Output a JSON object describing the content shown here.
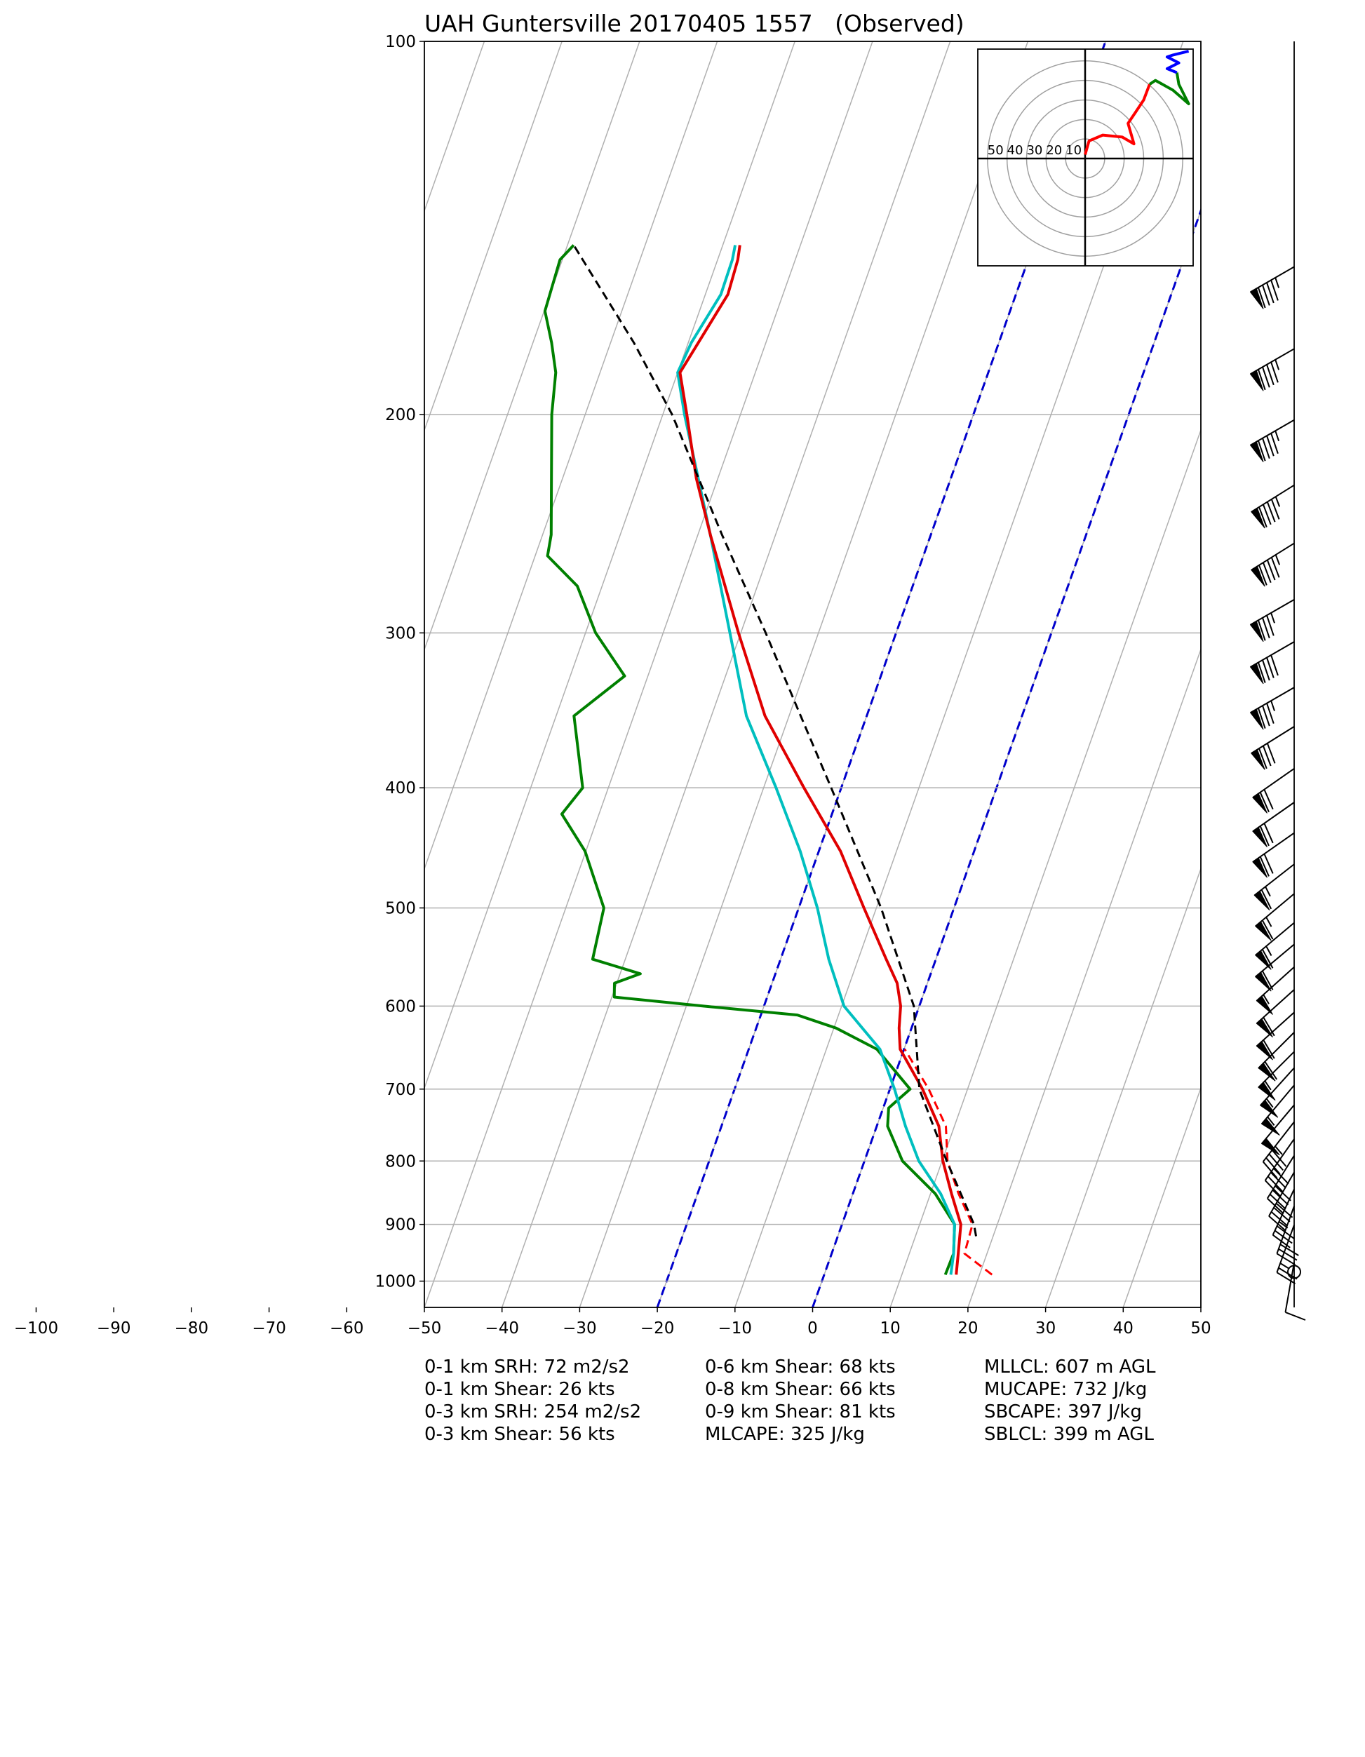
{
  "chart_data": {
    "type": "skewt",
    "title": "UAH Guntersville 20170405 1557   (Observed)",
    "ylim": [
      1050,
      100
    ],
    "ylog": true,
    "yticks": [
      100,
      200,
      300,
      400,
      500,
      600,
      700,
      800,
      900,
      1000
    ],
    "xlim": [
      -50,
      50
    ],
    "xticks": [
      {
        "value": -100,
        "label": "−100"
      },
      {
        "value": -90,
        "label": "−90"
      },
      {
        "value": -80,
        "label": "−80"
      },
      {
        "value": -70,
        "label": "−70"
      },
      {
        "value": -60,
        "label": "−60"
      },
      {
        "value": -50,
        "label": "−50"
      },
      {
        "value": -40,
        "label": "−40"
      },
      {
        "value": -30,
        "label": "−30"
      },
      {
        "value": -20,
        "label": "−20"
      },
      {
        "value": -10,
        "label": "−10"
      },
      0,
      10,
      20,
      30,
      40,
      50
    ],
    "grid": true,
    "highlight_isotherms": [
      -20,
      0
    ],
    "highlight_color": "#0000cc",
    "series": [
      {
        "color": "#008000",
        "dash": false,
        "x": [
          15.6,
          15.7,
          14.5,
          10.6,
          4.9,
          1.4,
          0.7,
          2.6,
          -3.5,
          -9.7,
          -15.3,
          -27.8,
          -39.7,
          -40.3,
          -37.4,
          -44.2,
          -45.1,
          -50.1,
          -54.8,
          -53.3,
          -57.7,
          -53.0,
          -58.7,
          -63.2,
          -68.4,
          -68.9,
          -74.3,
          -75.7,
          -77.6,
          -79.9,
          -80.3,
          -79.2
        ],
        "y": [
          988,
          950,
          900,
          850,
          800,
          750,
          725,
          700,
          650,
          625,
          610,
          600,
          590,
          575,
          565,
          550,
          500,
          450,
          420,
          400,
          350,
          325,
          300,
          275,
          260,
          250,
          200,
          185,
          175,
          165,
          150,
          146
        ]
      },
      {
        "color": "#00bfbf",
        "dash": false,
        "x": [
          16.3,
          15.7,
          14.5,
          11.3,
          7.0,
          3.7,
          0.6,
          -3.1,
          -9.7,
          -13.8,
          -17.6,
          -22.4,
          -28.4,
          -35.5,
          -41.4,
          -48.4,
          -57.2,
          -60.0,
          -59.6,
          -58.0,
          -58.1,
          -58.4
        ],
        "y": [
          988,
          950,
          900,
          850,
          800,
          750,
          700,
          650,
          600,
          550,
          500,
          450,
          400,
          350,
          300,
          250,
          200,
          185,
          175,
          160,
          150,
          146
        ]
      },
      {
        "color": "#ff0000",
        "dash": true,
        "x": [
          21.6,
          17.1,
          16.8,
          13.6,
          10.7,
          8.9,
          5.0,
          0.1
        ],
        "y": [
          988,
          950,
          900,
          850,
          800,
          750,
          700,
          650
        ]
      },
      {
        "color": "#e00000",
        "dash": false,
        "x": [
          17.0,
          16.3,
          15.3,
          12.7,
          10.1,
          8.0,
          4.2,
          -0.5,
          -1.6,
          -2.4,
          -3.9,
          -6.4,
          -11.6,
          -17.2,
          -24.8,
          -33.1,
          -40.3,
          -48.4,
          -52.8,
          -56.9,
          -59.7,
          -58.7,
          -57.1,
          -57.4,
          -57.8
        ],
        "y": [
          988,
          950,
          900,
          850,
          800,
          750,
          700,
          650,
          625,
          600,
          575,
          550,
          500,
          450,
          400,
          350,
          300,
          250,
          225,
          200,
          185,
          175,
          160,
          150,
          146
        ]
      },
      {
        "color": "#000000",
        "dash": true,
        "x": [
          17.8,
          17.0,
          13.9,
          10.6,
          3.8,
          -0.7,
          -9.4,
          -21.3,
          -28.5,
          -36.8,
          -46.9,
          -58.8,
          -67.0,
          -79.2
        ],
        "y": [
          920,
          900,
          850,
          800,
          700,
          600,
          500,
          400,
          350,
          300,
          250,
          200,
          175,
          146
        ]
      }
    ],
    "wind": {
      "pressure": [
        152,
        177,
        202,
        228,
        254,
        282,
        305,
        332,
        357,
        386,
        411,
        435,
        461,
        487,
        514,
        535,
        558,
        582,
        607,
        630,
        653,
        673,
        695,
        721,
        744,
        768,
        792,
        817,
        843,
        870,
        901,
        966,
        983
      ],
      "speed": [
        95,
        95,
        95,
        95,
        95,
        85,
        90,
        85,
        80,
        70,
        70,
        70,
        65,
        65,
        65,
        60,
        55,
        60,
        60,
        60,
        55,
        55,
        55,
        50,
        45,
        40,
        40,
        40,
        35,
        30,
        25,
        10,
        0
      ],
      "direction": [
        240,
        240,
        240,
        238,
        238,
        240,
        240,
        240,
        238,
        235,
        235,
        235,
        232,
        230,
        230,
        230,
        228,
        228,
        228,
        225,
        225,
        222,
        220,
        220,
        218,
        215,
        212,
        210,
        205,
        200,
        200,
        190,
        0
      ]
    },
    "hodograph": {
      "rings": [
        10,
        20,
        30,
        40,
        50
      ],
      "segments": [
        {
          "color": "#ff0000",
          "u": [
            0,
            2,
            9,
            19,
            25,
            22,
            26,
            30,
            33
          ],
          "v": [
            2,
            9,
            12,
            11,
            7.5,
            18,
            24,
            30,
            38
          ]
        },
        {
          "color": "#008000",
          "u": [
            33,
            36,
            45,
            53,
            48,
            47
          ],
          "v": [
            38,
            40,
            35,
            28,
            38,
            44
          ]
        },
        {
          "color": "#0000ff",
          "u": [
            47,
            42,
            48,
            42,
            45,
            53
          ],
          "v": [
            44,
            46,
            49,
            52,
            53,
            55
          ]
        }
      ]
    },
    "stats": [
      [
        "0-1 km SRH: 72 m2/s2",
        "0-1 km Shear: 26 kts",
        "0-3 km SRH: 254 m2/s2",
        "0-3 km Shear: 56 kts"
      ],
      [
        "0-6 km Shear: 68 kts",
        "0-8 km Shear: 66 kts",
        "0-9 km Shear: 81 kts",
        "MLCAPE: 325 J/kg"
      ],
      [
        "MLLCL: 607 m AGL",
        "MUCAPE: 732 J/kg",
        "SBCAPE: 397 J/kg",
        "SBLCL: 399 m AGL"
      ]
    ]
  }
}
